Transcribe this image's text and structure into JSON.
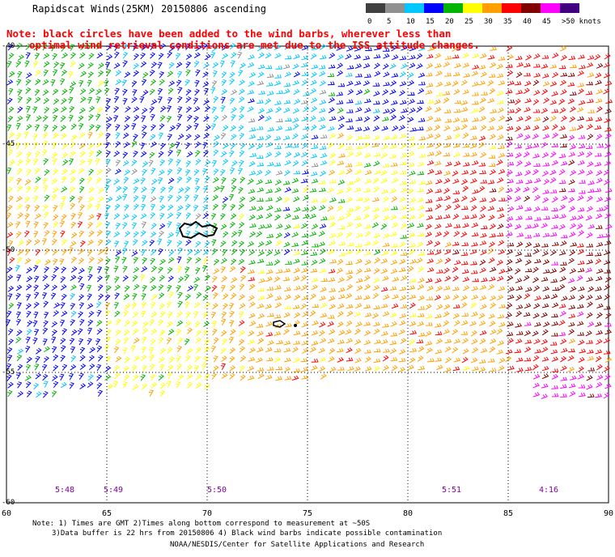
{
  "title": "Rapidscat Winds(25KM) 20150806 ascending",
  "notes": [
    "Note: black circles have been added to the wind barbs, wherever less than",
    "optimal wind retrieval conditions are met due to the ISS attitude changes."
  ],
  "color_scale": {
    "labels": [
      "0",
      "5",
      "10",
      "15",
      "20",
      "25",
      "30",
      "35",
      "40",
      "45",
      ">50 knots"
    ],
    "colors": [
      "#404040",
      "#909090",
      "#00c8ff",
      "#0000ff",
      "#00b400",
      "#ffff00",
      "#ffa000",
      "#ff0000",
      "#800000",
      "#ff00ff",
      "#400080"
    ]
  },
  "lat_labels": [
    "-40",
    "-45",
    "-50",
    "-55",
    "-60"
  ],
  "lon_labels": [
    "60",
    "65",
    "70",
    "75",
    "80",
    "85",
    "90"
  ],
  "time_labels": [
    "5:48",
    "5:49",
    "5:50",
    "5:51",
    "4:16"
  ],
  "footer": [
    "Note: 1) Times are GMT 2)Times along bottom correspond to measurement at ~50S",
    "3)Data buffer is 22 hrs from 20150806 4) Black wind barbs indicate possible contamination",
    "NOAA/NESDIS/Center for Satellite Applications and Research"
  ]
}
